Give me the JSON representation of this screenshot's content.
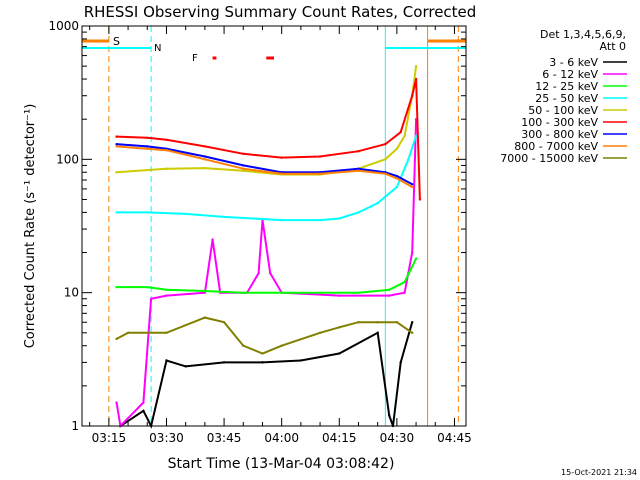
{
  "chart_data": {
    "type": "line",
    "title": "RHESSI Observing Summary Count Rates, Corrected",
    "xlabel": "Start Time (13-Mar-04 03:08:42)",
    "ylabel": "Corrected Count Rate (s⁻¹ detector⁻¹)",
    "y_scale": "log",
    "ylim": [
      1,
      1000
    ],
    "xlim": [
      "03:08",
      "04:48"
    ],
    "x_ticks": [
      "03:15",
      "03:30",
      "03:45",
      "04:00",
      "04:15",
      "04:30",
      "04:45"
    ],
    "y_ticks": [
      "1",
      "10",
      "100",
      "1000"
    ],
    "timestamp": "15-Oct-2021 21:34",
    "legend": {
      "position": "right",
      "header_line1": "Det 1,3,4,5,6,9,",
      "header_line2": "Att 0"
    },
    "flags": {
      "S": {
        "label": "S",
        "color": "#ff7f00"
      },
      "N": {
        "label": "N",
        "color": "#00ffff"
      },
      "F": {
        "label": "F",
        "color": "#ff0000"
      }
    },
    "series": [
      {
        "name": "3 - 6 keV",
        "color": "#000000",
        "points": [
          [
            "03:18",
            1
          ],
          [
            "03:24",
            1.3
          ],
          [
            "03:26",
            1
          ],
          [
            "03:30",
            3.1
          ],
          [
            "03:35",
            2.8
          ],
          [
            "03:45",
            3
          ],
          [
            "03:55",
            3
          ],
          [
            "04:05",
            3.1
          ],
          [
            "04:15",
            3.5
          ],
          [
            "04:25",
            5
          ],
          [
            "04:28",
            1.2
          ],
          [
            "04:29",
            1
          ],
          [
            "04:31",
            3
          ],
          [
            "04:34",
            6
          ]
        ]
      },
      {
        "name": "6 - 12 keV",
        "color": "#ff00ff",
        "points": [
          [
            "03:17",
            1.5
          ],
          [
            "03:18",
            1
          ],
          [
            "03:24",
            1.5
          ],
          [
            "03:26",
            9
          ],
          [
            "03:30",
            9.5
          ],
          [
            "03:40",
            10
          ],
          [
            "03:42",
            25
          ],
          [
            "03:44",
            10
          ],
          [
            "03:51",
            10
          ],
          [
            "03:54",
            14
          ],
          [
            "03:55",
            35
          ],
          [
            "03:57",
            14
          ],
          [
            "04:00",
            10
          ],
          [
            "04:15",
            9.5
          ],
          [
            "04:28",
            9.5
          ],
          [
            "04:32",
            10
          ],
          [
            "04:34",
            20
          ],
          [
            "04:35",
            200
          ]
        ]
      },
      {
        "name": "12 - 25 keV",
        "color": "#00ff00",
        "points": [
          [
            "03:17",
            11
          ],
          [
            "03:25",
            11
          ],
          [
            "03:30",
            10.5
          ],
          [
            "03:40",
            10.3
          ],
          [
            "03:50",
            10
          ],
          [
            "04:00",
            10
          ],
          [
            "04:10",
            10
          ],
          [
            "04:20",
            10
          ],
          [
            "04:28",
            10.5
          ],
          [
            "04:32",
            12
          ],
          [
            "04:35",
            18
          ]
        ]
      },
      {
        "name": "25 - 50 keV",
        "color": "#00ffff",
        "points": [
          [
            "03:17",
            40
          ],
          [
            "03:25",
            40
          ],
          [
            "03:35",
            39
          ],
          [
            "03:45",
            37
          ],
          [
            "04:00",
            35
          ],
          [
            "04:10",
            35
          ],
          [
            "04:15",
            36
          ],
          [
            "04:20",
            40
          ],
          [
            "04:25",
            47
          ],
          [
            "04:30",
            62
          ],
          [
            "04:33",
            100
          ],
          [
            "04:35",
            150
          ]
        ]
      },
      {
        "name": "50 - 100 keV",
        "color": "#cccc00",
        "points": [
          [
            "03:17",
            80
          ],
          [
            "03:30",
            85
          ],
          [
            "03:40",
            86
          ],
          [
            "03:50",
            82
          ],
          [
            "04:00",
            77
          ],
          [
            "04:10",
            77
          ],
          [
            "04:20",
            85
          ],
          [
            "04:27",
            100
          ],
          [
            "04:30",
            120
          ],
          [
            "04:32",
            150
          ],
          [
            "04:34",
            300
          ],
          [
            "04:35",
            500
          ]
        ]
      },
      {
        "name": "100 - 300 keV",
        "color": "#ff0000",
        "points": [
          [
            "03:17",
            148
          ],
          [
            "03:25",
            145
          ],
          [
            "03:30",
            140
          ],
          [
            "03:40",
            125
          ],
          [
            "03:50",
            110
          ],
          [
            "04:00",
            103
          ],
          [
            "04:10",
            105
          ],
          [
            "04:20",
            115
          ],
          [
            "04:27",
            130
          ],
          [
            "04:31",
            160
          ],
          [
            "04:34",
            300
          ],
          [
            "04:35",
            400
          ],
          [
            "04:36",
            50
          ]
        ]
      },
      {
        "name": "300 - 800 keV",
        "color": "#0000ff",
        "points": [
          [
            "03:17",
            130
          ],
          [
            "03:25",
            125
          ],
          [
            "03:30",
            120
          ],
          [
            "03:40",
            105
          ],
          [
            "03:50",
            90
          ],
          [
            "04:00",
            80
          ],
          [
            "04:10",
            80
          ],
          [
            "04:20",
            85
          ],
          [
            "04:27",
            80
          ],
          [
            "04:30",
            75
          ],
          [
            "04:34",
            65
          ]
        ]
      },
      {
        "name": "800 - 7000 keV",
        "color": "#ff7f00",
        "points": [
          [
            "03:17",
            125
          ],
          [
            "03:25",
            120
          ],
          [
            "03:30",
            117
          ],
          [
            "03:40",
            100
          ],
          [
            "03:50",
            85
          ],
          [
            "04:00",
            78
          ],
          [
            "04:10",
            78
          ],
          [
            "04:20",
            82
          ],
          [
            "04:27",
            78
          ],
          [
            "04:30",
            72
          ],
          [
            "04:34",
            62
          ]
        ]
      },
      {
        "name": "7000 - 15000 keV",
        "color": "#808000",
        "points": [
          [
            "03:17",
            4.5
          ],
          [
            "03:20",
            5
          ],
          [
            "03:30",
            5
          ],
          [
            "03:40",
            6.5
          ],
          [
            "03:45",
            6
          ],
          [
            "03:50",
            4
          ],
          [
            "03:55",
            3.5
          ],
          [
            "04:00",
            4
          ],
          [
            "04:10",
            5
          ],
          [
            "04:15",
            5.5
          ],
          [
            "04:20",
            6
          ],
          [
            "04:25",
            6
          ],
          [
            "04:30",
            6
          ],
          [
            "04:34",
            5
          ]
        ]
      }
    ]
  }
}
